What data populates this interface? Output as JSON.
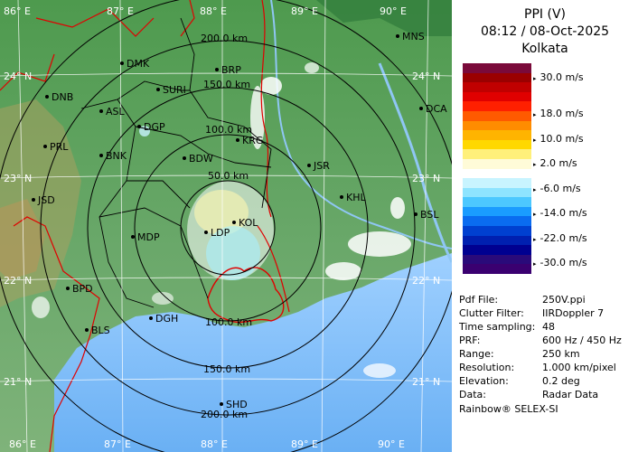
{
  "header": {
    "product": "PPI (V)",
    "datetime": "08:12 / 08-Oct-2025",
    "station": "Kolkata"
  },
  "color_scale": {
    "unit_labels": [
      "30.0 m/s",
      "18.0 m/s",
      "10.0 m/s",
      "2.0 m/s",
      "-6.0 m/s",
      "-14.0 m/s",
      "-22.0 m/s",
      "-30.0 m/s"
    ],
    "colors": [
      "#7a0a3a",
      "#9a0000",
      "#c00000",
      "#e00000",
      "#ff2000",
      "#ff5a00",
      "#ff8c00",
      "#ffb400",
      "#ffd800",
      "#fff07a",
      "#fffbd8",
      "#ffffff",
      "#c8f4ff",
      "#8ee4ff",
      "#4cc8ff",
      "#1a9cff",
      "#0a6cf0",
      "#0040d0",
      "#0020b0",
      "#000090",
      "#2a0a7a",
      "#3a0070"
    ]
  },
  "metadata": [
    {
      "key": "Pdf File:",
      "value": "250V.ppi"
    },
    {
      "key": "Clutter Filter:",
      "value": "IIRDoppler 7"
    },
    {
      "key": "Time sampling:",
      "value": "48"
    },
    {
      "key": "PRF:",
      "value": "600 Hz / 450 Hz"
    },
    {
      "key": "Range:",
      "value": "250 km"
    },
    {
      "key": "Resolution:",
      "value": "1.000 km/pixel"
    },
    {
      "key": "Elevation:",
      "value": "0.2 deg"
    },
    {
      "key": "Data:",
      "value": "Radar Data"
    }
  ],
  "footer": "Rainbow® SELEX-SI",
  "map": {
    "lon_labels": [
      "86° E",
      "87° E",
      "88° E",
      "89° E",
      "90° E"
    ],
    "lat_labels": [
      "24° N",
      "23° N",
      "22° N",
      "21° N"
    ],
    "range_labels": [
      "200.0 km",
      "150.0 km",
      "100.0 km",
      "50.0 km",
      "100.0 km",
      "150.0 km",
      "200.0 km"
    ],
    "cities": [
      {
        "name": "MNS"
      },
      {
        "name": "DMK"
      },
      {
        "name": "BRP"
      },
      {
        "name": "DNB"
      },
      {
        "name": "SURI"
      },
      {
        "name": "DCA"
      },
      {
        "name": "ASL"
      },
      {
        "name": "DGP"
      },
      {
        "name": "KRG"
      },
      {
        "name": "PRL"
      },
      {
        "name": "BNK"
      },
      {
        "name": "BDW"
      },
      {
        "name": "JSR"
      },
      {
        "name": "JSD"
      },
      {
        "name": "KHL"
      },
      {
        "name": "BSL"
      },
      {
        "name": "KOL"
      },
      {
        "name": "MDP"
      },
      {
        "name": "LDP"
      },
      {
        "name": "BPD"
      },
      {
        "name": "DGH"
      },
      {
        "name": "BLS"
      },
      {
        "name": "SHD"
      }
    ]
  }
}
